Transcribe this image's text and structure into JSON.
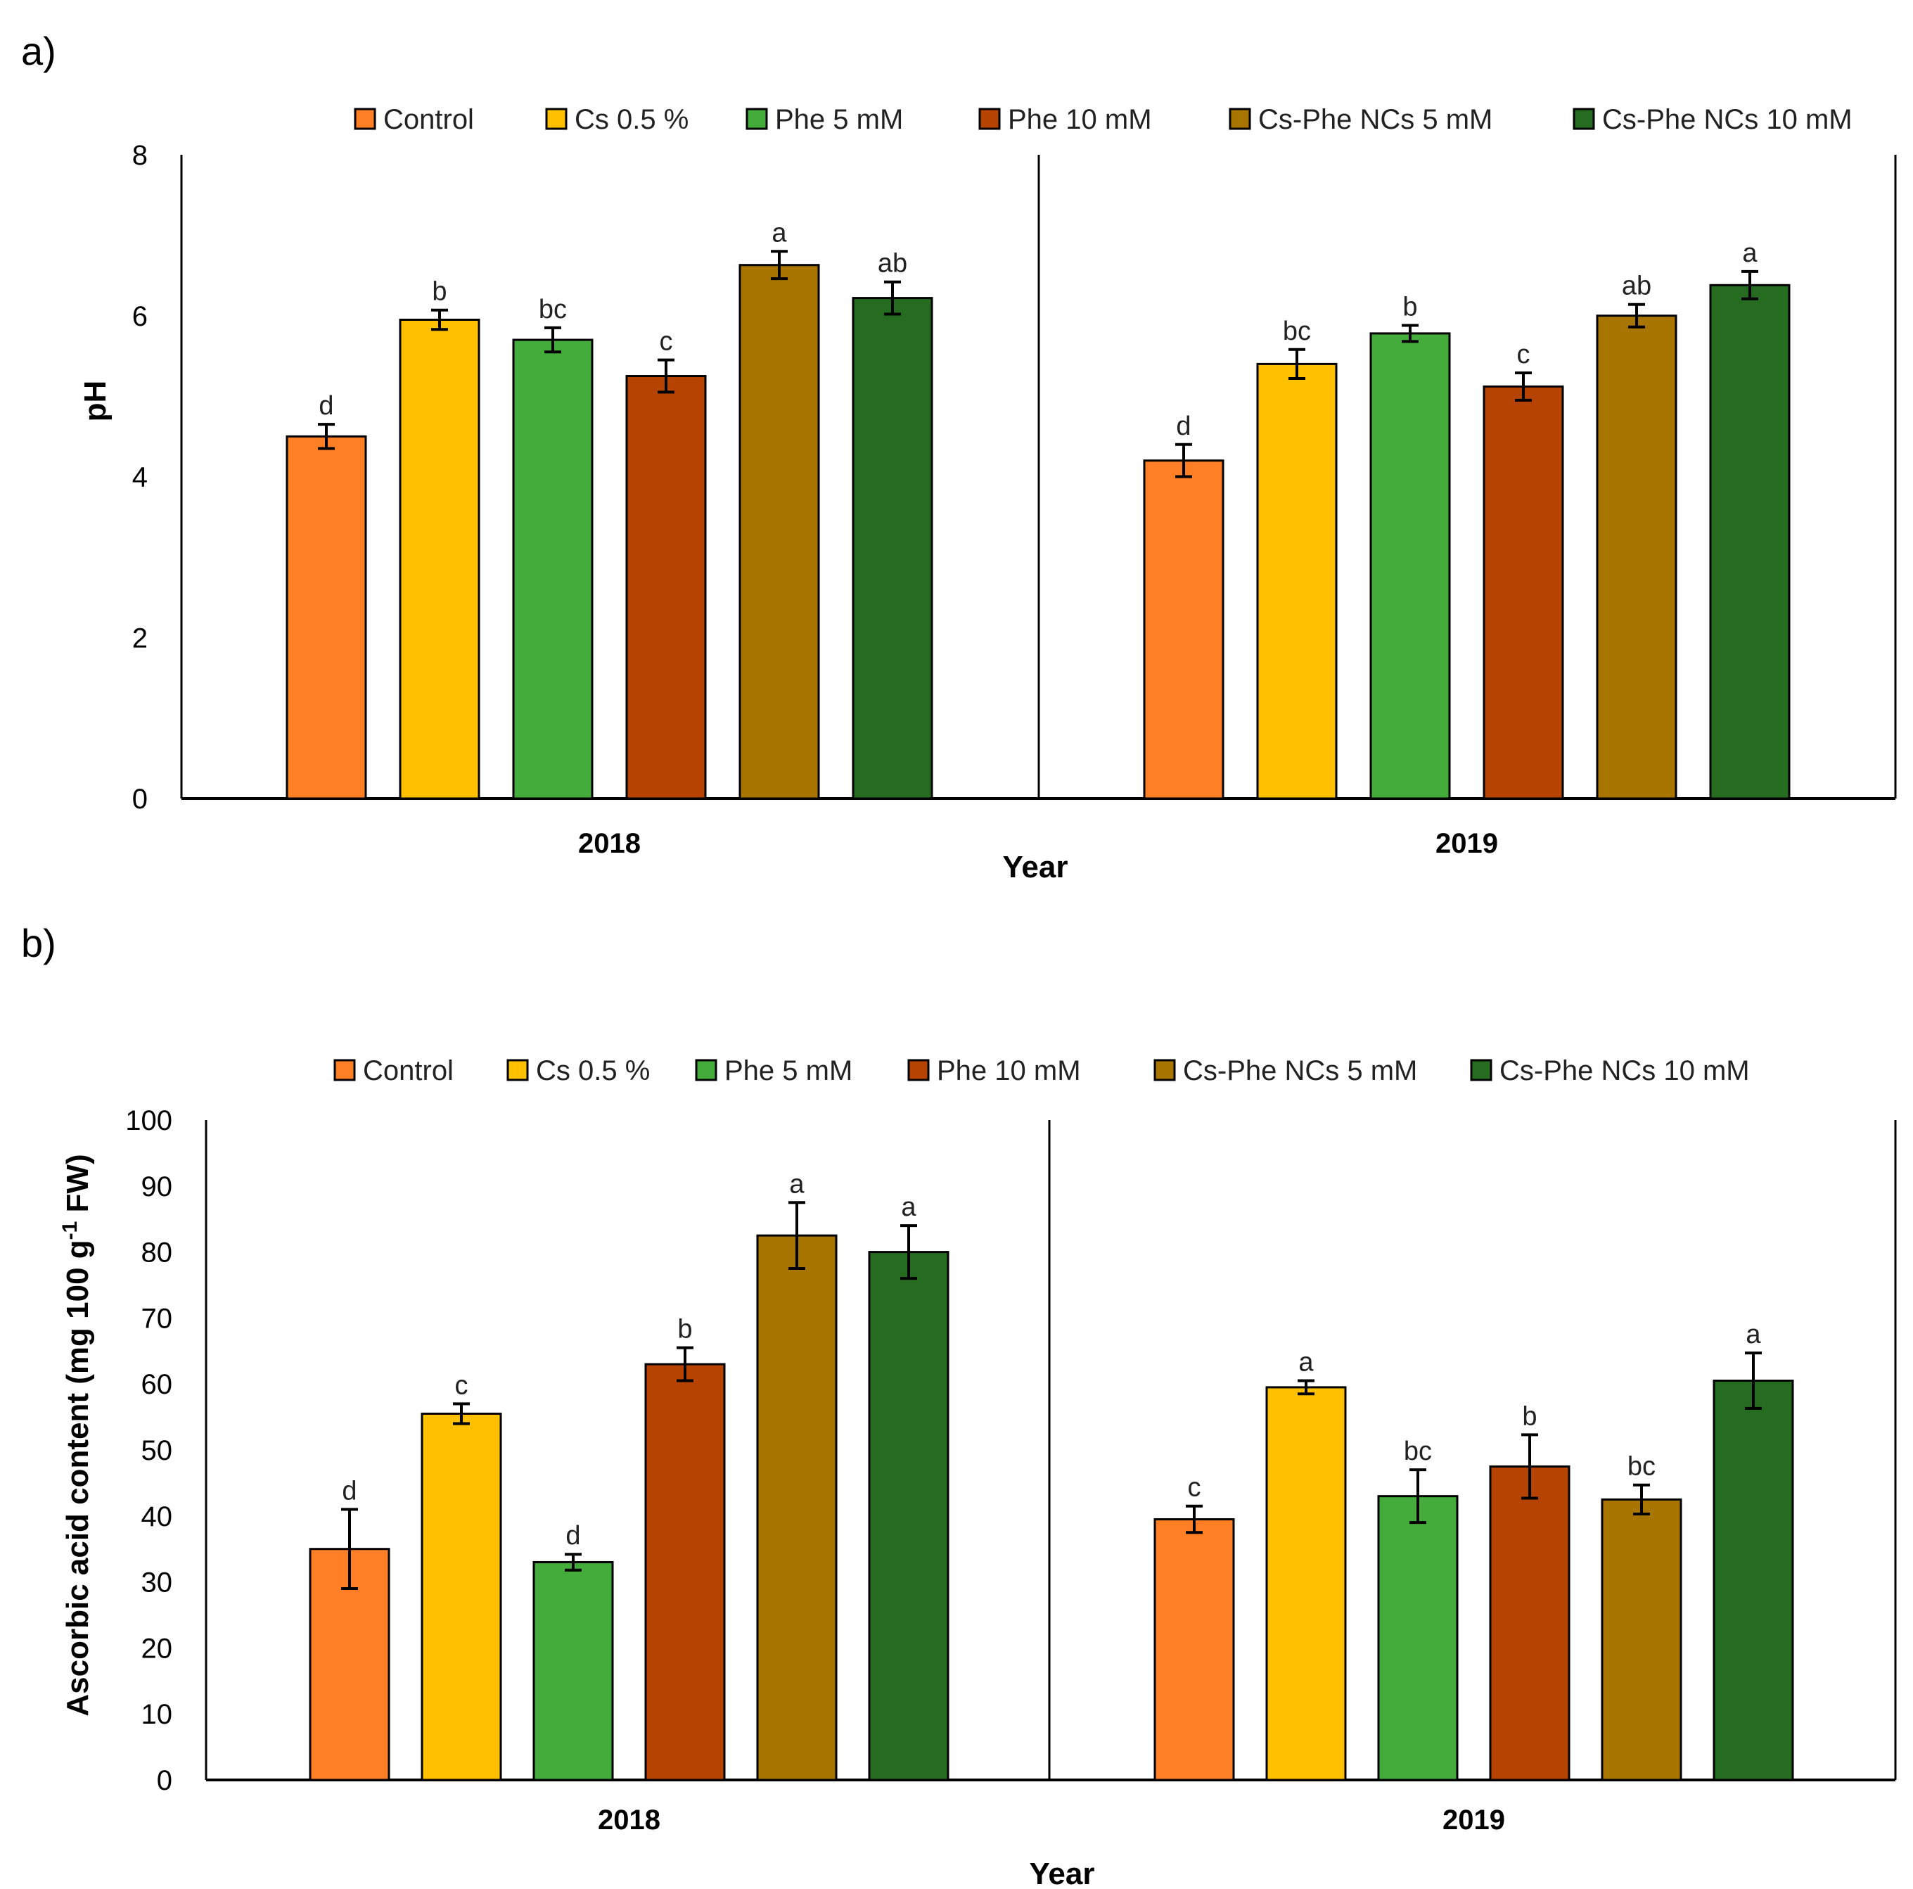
{
  "colors": {
    "Control": "#FF7F27",
    "Cs 0.5 %": "#FFC000",
    "Phe 5 mM": "#43AC3B",
    "Phe 10 mM": "#B64400",
    "Cs-Phe NCs 5 mM": "#A87600",
    "Cs-Phe NCs 10 mM": "#256B20"
  },
  "chart_data": [
    {
      "type": "bar",
      "panel_label": "a)",
      "title": "",
      "xlabel": "Year",
      "ylabel": "pH",
      "ylim": [
        0,
        8
      ],
      "yticks": [
        0,
        2,
        4,
        6,
        8
      ],
      "grid": false,
      "legend_position": "top",
      "categories": [
        "2018",
        "2019"
      ],
      "series": [
        {
          "name": "Control",
          "values": [
            4.5,
            4.2
          ],
          "errors": [
            0.15,
            0.2
          ],
          "labels": [
            "d",
            "d"
          ]
        },
        {
          "name": "Cs 0.5 %",
          "values": [
            5.95,
            5.4
          ],
          "errors": [
            0.12,
            0.18
          ],
          "labels": [
            "b",
            "bc"
          ]
        },
        {
          "name": "Phe 5 mM",
          "values": [
            5.7,
            5.78
          ],
          "errors": [
            0.15,
            0.1
          ],
          "labels": [
            "bc",
            "b"
          ]
        },
        {
          "name": "Phe 10 mM",
          "values": [
            5.25,
            5.12
          ],
          "errors": [
            0.2,
            0.17
          ],
          "labels": [
            "c",
            "c"
          ]
        },
        {
          "name": "Cs-Phe NCs 5 mM",
          "values": [
            6.63,
            6.0
          ],
          "errors": [
            0.17,
            0.14
          ],
          "labels": [
            "a",
            "ab"
          ]
        },
        {
          "name": "Cs-Phe NCs 10 mM",
          "values": [
            6.22,
            6.38
          ],
          "errors": [
            0.2,
            0.17
          ],
          "labels": [
            "ab",
            "a"
          ]
        }
      ]
    },
    {
      "type": "bar",
      "panel_label": "b)",
      "title": "",
      "xlabel": "Year",
      "ylabel": "Ascorbic acid content (mg 100 g-1 FW)",
      "ylabel_parts": [
        "Ascorbic acid content (mg 100 g",
        "-1",
        " FW)"
      ],
      "ylim": [
        0,
        100
      ],
      "yticks": [
        0,
        10,
        20,
        30,
        40,
        50,
        60,
        70,
        80,
        90,
        100
      ],
      "grid": false,
      "legend_position": "top",
      "categories": [
        "2018",
        "2019"
      ],
      "series": [
        {
          "name": "Control",
          "values": [
            35,
            39.5
          ],
          "errors": [
            6,
            2
          ],
          "labels": [
            "d",
            "c"
          ]
        },
        {
          "name": "Cs 0.5 %",
          "values": [
            55.5,
            59.5
          ],
          "errors": [
            1.5,
            1
          ],
          "labels": [
            "c",
            "a"
          ]
        },
        {
          "name": "Phe 5 mM",
          "values": [
            33,
            43
          ],
          "errors": [
            1.2,
            4
          ],
          "labels": [
            "d",
            "bc"
          ]
        },
        {
          "name": "Phe 10 mM",
          "values": [
            63,
            47.5
          ],
          "errors": [
            2.5,
            4.8
          ],
          "labels": [
            "b",
            "b"
          ]
        },
        {
          "name": "Cs-Phe NCs 5 mM",
          "values": [
            82.5,
            42.5
          ],
          "errors": [
            5,
            2.2
          ],
          "labels": [
            "a",
            "bc"
          ]
        },
        {
          "name": "Cs-Phe NCs 10 mM",
          "values": [
            80,
            60.5
          ],
          "errors": [
            4,
            4.2
          ],
          "labels": [
            "a",
            "a"
          ]
        }
      ]
    }
  ]
}
